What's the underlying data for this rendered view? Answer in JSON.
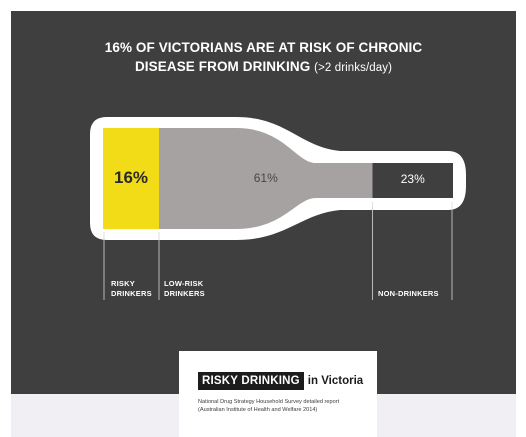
{
  "title": {
    "line1": "16% OF VICTORIANS ARE AT RISK OF CHRONIC",
    "line2": "DISEASE FROM DRINKING",
    "note": "(>2 drinks/day)"
  },
  "chart_data": {
    "type": "bar",
    "orientation": "stacked-horizontal-100",
    "categories": [
      "RISKY DRINKERS",
      "LOW-RISK DRINKERS",
      "NON-DRINKERS"
    ],
    "values": [
      16,
      61,
      23
    ],
    "value_labels": [
      "16%",
      "61%",
      "23%"
    ],
    "colors": [
      "#f2dc17",
      "#a6a2a1",
      "#403f3f"
    ],
    "outline_color": "#ffffff",
    "background_color": "#403f3f"
  },
  "labels": {
    "risky": [
      "RISKY",
      "DRINKERS"
    ],
    "low": [
      "LOW-RISK",
      "DRINKERS"
    ],
    "non": [
      "NON-DRINKERS"
    ]
  },
  "logo": {
    "boxed": "RISKY DRINKING",
    "rest": "in Victoria"
  },
  "source": {
    "line1": "National Drug Strategy Household Survey detailed report",
    "line2": "(Australian Institute of Health and Welfare 2014)"
  }
}
